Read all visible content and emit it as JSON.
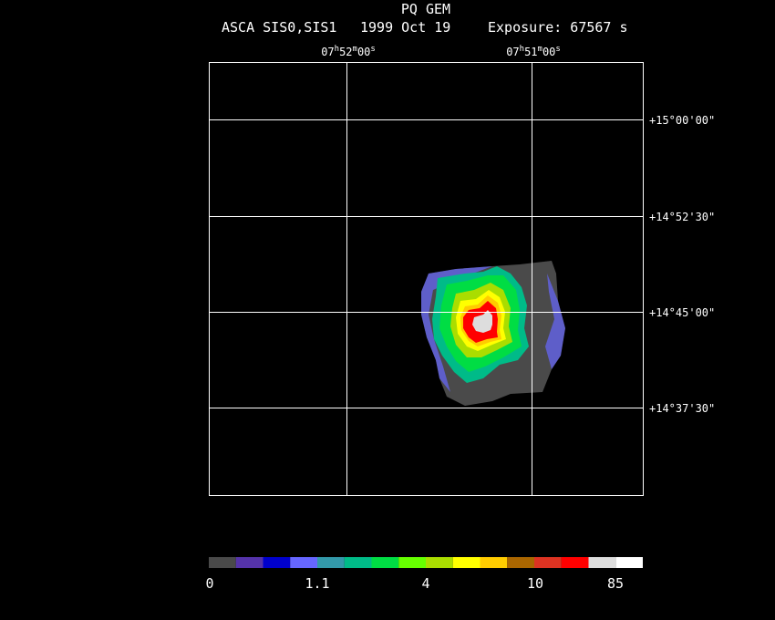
{
  "header": {
    "title": "PQ GEM",
    "instrument": "ASCA SIS0,SIS1",
    "date": "1999 Oct 19",
    "exposure": "Exposure: 67567 s"
  },
  "ra_labels": [
    [
      "07",
      "h",
      "52",
      "m",
      "00",
      "s"
    ],
    [
      "07",
      "h",
      "51",
      "m",
      "00",
      "s"
    ]
  ],
  "dec_labels": [
    "+15°00'00\"",
    "+14°52'30\"",
    "+14°45'00\"",
    "+14°37'30\""
  ],
  "colorbar": {
    "colors": [
      "#4a4a4a",
      "#5533aa",
      "#0000cc",
      "#6666ff",
      "#3399aa",
      "#00bb88",
      "#00dd44",
      "#66ff00",
      "#aadd00",
      "#ffff00",
      "#ffcc00",
      "#aa6600",
      "#dd3322",
      "#ff0000",
      "#dddddd",
      "#ffffff"
    ],
    "labels": [
      "0",
      "1.1",
      "4",
      "10",
      "85"
    ]
  }
}
